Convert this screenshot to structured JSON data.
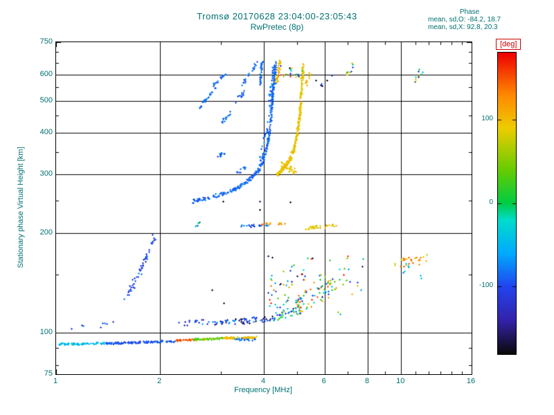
{
  "window": {
    "title": "Tromsø 20170628 23:04:00-23:05:43",
    "subtitle": "RwPretec (8p)"
  },
  "stats": {
    "header": "Phase",
    "line1": "mean, sd,O: -84.2, 18.7",
    "line2": "mean, sd,X:  92.8, 20.3"
  },
  "colorbar": {
    "label": "[deg]",
    "ticks": [
      100,
      0,
      -100
    ],
    "min": -180,
    "max": 180
  },
  "chart_data": {
    "type": "scatter",
    "title": "Tromsø 20170628 23:04:00-23:05:43",
    "subtitle": "RwPretec (8p)",
    "xlabel": "Frequency [MHz]",
    "ylabel": "Stationary phase Virtual Height [km]",
    "xscale": "log",
    "yscale": "log",
    "xlim": [
      1,
      16
    ],
    "ylim": [
      75,
      750
    ],
    "xticks": [
      1,
      2,
      4,
      6,
      8,
      10,
      16
    ],
    "yticks": [
      75,
      100,
      200,
      300,
      400,
      500,
      600,
      750
    ],
    "xminor": [
      3,
      5,
      7,
      9,
      11,
      12,
      13,
      14,
      15
    ],
    "yminor": [
      80,
      90,
      150,
      250,
      350,
      450,
      550,
      650,
      700
    ],
    "grid_x": [
      2,
      4,
      6,
      8,
      10
    ],
    "grid_y": [
      100,
      200,
      300,
      400,
      500,
      600
    ],
    "grid": true,
    "legend": "colorbar-right",
    "color_value": "phase [deg]",
    "colormap": [
      [
        -180,
        "#0a0a0a"
      ],
      [
        -140,
        "#3322aa"
      ],
      [
        -100,
        "#2244ee"
      ],
      [
        -60,
        "#00aaff"
      ],
      [
        -20,
        "#00ddcc"
      ],
      [
        0,
        "#00cc44"
      ],
      [
        40,
        "#66cc00"
      ],
      [
        90,
        "#eecc00"
      ],
      [
        130,
        "#ff8800"
      ],
      [
        180,
        "#ee0000"
      ]
    ],
    "traces": [
      {
        "name": "e-trace-cyan",
        "pts": [
          [
            1.02,
            92.5
          ],
          [
            1.38,
            93
          ]
        ],
        "n": 70,
        "fj": 0.006,
        "hj": 0.006,
        "ph": -48,
        "pj": 14
      },
      {
        "name": "e-trace-blue",
        "pts": [
          [
            1.38,
            93
          ],
          [
            2.2,
            94.5
          ]
        ],
        "n": 130,
        "fj": 0.005,
        "hj": 0.006,
        "ph": -95,
        "pj": 12
      },
      {
        "name": "e-trace-orange",
        "pts": [
          [
            2.22,
            95
          ],
          [
            2.5,
            95.5
          ]
        ],
        "n": 26,
        "fj": 0.006,
        "hj": 0.006,
        "ph": 145,
        "pj": 25
      },
      {
        "name": "e-trace-green",
        "pts": [
          [
            2.5,
            95.5
          ],
          [
            3.05,
            96.5
          ]
        ],
        "n": 55,
        "fj": 0.006,
        "hj": 0.006,
        "ph": 45,
        "pj": 35
      },
      {
        "name": "e-trace-yellow",
        "pts": [
          [
            3.05,
            96.5
          ],
          [
            3.8,
            97
          ]
        ],
        "n": 75,
        "fj": 0.006,
        "hj": 0.006,
        "ph": 95,
        "pj": 22
      },
      {
        "name": "e-trace-blue-mix",
        "pts": [
          [
            3.3,
            95.5
          ],
          [
            3.8,
            95.5
          ]
        ],
        "n": 18,
        "fj": 0.008,
        "hj": 0.008,
        "ph": -85,
        "pj": 20
      },
      {
        "name": "e2-band-1",
        "pts": [
          [
            2.25,
            107
          ],
          [
            3.3,
            108
          ]
        ],
        "n": 40,
        "fj": 0.01,
        "hj": 0.02,
        "ph": -100,
        "pj": 45
      },
      {
        "name": "e2-band-2",
        "pts": [
          [
            3.3,
            108
          ],
          [
            4.3,
            111
          ]
        ],
        "n": 45,
        "fj": 0.01,
        "hj": 0.02,
        "ph": -120,
        "pj": 55
      },
      {
        "name": "e2-band-3",
        "pts": [
          [
            4.3,
            112
          ],
          [
            5.1,
            118
          ]
        ],
        "n": 40,
        "fj": 0.012,
        "hj": 0.03,
        "ph": -40,
        "pj": 110
      },
      {
        "name": "e2-rise",
        "pts": [
          [
            4.9,
            120
          ],
          [
            6.3,
            138
          ]
        ],
        "n": 55,
        "fj": 0.015,
        "hj": 0.06,
        "ph": 30,
        "pj": 140
      },
      {
        "name": "mid-cloud",
        "pts": [
          [
            4.1,
            135
          ],
          [
            6.4,
            155
          ]
        ],
        "n": 60,
        "fj": 0.02,
        "hj": 0.16,
        "ph": 0,
        "pj": 170
      },
      {
        "name": "mid-cloud-right",
        "pts": [
          [
            6.4,
            130
          ],
          [
            7.8,
            170
          ]
        ],
        "n": 20,
        "fj": 0.02,
        "hj": 0.18,
        "ph": 10,
        "pj": 160
      },
      {
        "name": "lower-diagonal",
        "pts": [
          [
            1.58,
            128
          ],
          [
            1.72,
            146
          ],
          [
            1.82,
            168
          ],
          [
            1.92,
            195
          ]
        ],
        "n": 50,
        "fj": 0.012,
        "hj": 0.03,
        "ph": -100,
        "pj": 25
      },
      {
        "name": "f-trace-o",
        "pts": [
          [
            2.45,
            248
          ],
          [
            2.75,
            255
          ],
          [
            3.05,
            263
          ],
          [
            3.35,
            274
          ],
          [
            3.6,
            288
          ],
          [
            3.85,
            308
          ],
          [
            4.0,
            335
          ],
          [
            4.1,
            372
          ],
          [
            4.17,
            425
          ],
          [
            4.22,
            495
          ],
          [
            4.27,
            575
          ],
          [
            4.32,
            655
          ]
        ],
        "n": 300,
        "fj": 0.005,
        "hj": 0.012,
        "ph": -85,
        "pj": 13
      },
      {
        "name": "f-trace-o-spread",
        "pts": [
          [
            3.9,
            320
          ],
          [
            4.05,
            400
          ],
          [
            4.15,
            480
          ],
          [
            4.25,
            570
          ],
          [
            4.3,
            650
          ]
        ],
        "n": 80,
        "fj": 0.015,
        "hj": 0.035,
        "ph": -85,
        "pj": 20
      },
      {
        "name": "o-column",
        "pts": [
          [
            3.88,
            560
          ],
          [
            3.95,
            660
          ]
        ],
        "n": 40,
        "fj": 0.008,
        "hj": 0.02,
        "ph": -85,
        "pj": 16
      },
      {
        "name": "oblique-1",
        "pts": [
          [
            2.6,
            478
          ],
          [
            2.75,
            512
          ],
          [
            2.9,
            552
          ]
        ],
        "n": 28,
        "fj": 0.006,
        "hj": 0.012,
        "ph": -85,
        "pj": 14
      },
      {
        "name": "oblique-2",
        "pts": [
          [
            2.85,
            555
          ],
          [
            3.0,
            585
          ],
          [
            3.12,
            612
          ]
        ],
        "n": 20,
        "fj": 0.006,
        "hj": 0.012,
        "ph": -85,
        "pj": 14
      },
      {
        "name": "oblique-3",
        "pts": [
          [
            3.0,
            428
          ],
          [
            3.2,
            462
          ]
        ],
        "n": 14,
        "fj": 0.008,
        "hj": 0.015,
        "ph": -85,
        "pj": 14
      },
      {
        "name": "oblique-4",
        "pts": [
          [
            3.3,
            492
          ],
          [
            3.5,
            535
          ]
        ],
        "n": 12,
        "fj": 0.008,
        "hj": 0.015,
        "ph": -85,
        "pj": 14
      },
      {
        "name": "oblique-5",
        "pts": [
          [
            3.45,
            556
          ],
          [
            3.6,
            592
          ],
          [
            3.72,
            628
          ],
          [
            3.8,
            650
          ]
        ],
        "n": 22,
        "fj": 0.007,
        "hj": 0.012,
        "ph": -85,
        "pj": 14
      },
      {
        "name": "blue-clump-340",
        "pts": [
          [
            2.88,
            338
          ],
          [
            3.06,
            348
          ]
        ],
        "n": 10,
        "fj": 0.008,
        "hj": 0.01,
        "ph": -85,
        "pj": 14
      },
      {
        "name": "blue-clump-310",
        "pts": [
          [
            3.32,
            303
          ],
          [
            3.52,
            315
          ]
        ],
        "n": 10,
        "fj": 0.008,
        "hj": 0.01,
        "ph": -85,
        "pj": 14
      },
      {
        "name": "f-trace-x",
        "pts": [
          [
            4.35,
            298
          ],
          [
            4.55,
            313
          ],
          [
            4.75,
            333
          ],
          [
            4.9,
            362
          ],
          [
            5.0,
            402
          ],
          [
            5.08,
            458
          ],
          [
            5.14,
            535
          ],
          [
            5.2,
            645
          ]
        ],
        "n": 260,
        "fj": 0.006,
        "hj": 0.012,
        "ph": 92,
        "pj": 13
      },
      {
        "name": "x-column",
        "pts": [
          [
            4.35,
            575
          ],
          [
            4.45,
            655
          ]
        ],
        "n": 40,
        "fj": 0.008,
        "hj": 0.02,
        "ph": 95,
        "pj": 15
      },
      {
        "name": "x-shelf",
        "pts": [
          [
            4.5,
            322
          ],
          [
            4.9,
            306
          ]
        ],
        "n": 30,
        "fj": 0.01,
        "hj": 0.02,
        "ph": 95,
        "pj": 18
      },
      {
        "name": "x-sparse-top",
        "pts": [
          [
            5.28,
            555
          ],
          [
            5.45,
            615
          ]
        ],
        "n": 12,
        "fj": 0.008,
        "hj": 0.02,
        "ph": 95,
        "pj": 18
      },
      {
        "name": "top-mixed-specks",
        "pts": [
          [
            4.4,
            620
          ],
          [
            5.1,
            600
          ]
        ],
        "n": 18,
        "fj": 0.02,
        "hj": 0.04,
        "ph": 0,
        "pj": 175
      },
      {
        "name": "seg210-blue",
        "pts": [
          [
            3.45,
            210
          ],
          [
            4.25,
            211
          ]
        ],
        "n": 22,
        "fj": 0.01,
        "hj": 0.008,
        "ph": -90,
        "pj": 28
      },
      {
        "name": "seg210-orange",
        "pts": [
          [
            3.85,
            213
          ],
          [
            4.6,
            213
          ]
        ],
        "n": 14,
        "fj": 0.012,
        "hj": 0.008,
        "ph": 125,
        "pj": 30
      },
      {
        "name": "seg210-yellow",
        "pts": [
          [
            5.3,
            207
          ],
          [
            6.6,
            212
          ]
        ],
        "n": 30,
        "fj": 0.012,
        "hj": 0.01,
        "ph": 95,
        "pj": 22
      },
      {
        "name": "spot-2p6-210",
        "pts": [
          [
            2.52,
            209
          ],
          [
            2.64,
            216
          ]
        ],
        "n": 7,
        "fj": 0.006,
        "hj": 0.01,
        "ph": -50,
        "pj": 70
      },
      {
        "name": "spot-7-top",
        "pts": [
          [
            6.95,
            598
          ],
          [
            7.25,
            648
          ]
        ],
        "n": 10,
        "fj": 0.01,
        "hj": 0.02,
        "ph": 20,
        "pj": 130
      },
      {
        "name": "spot-11-top",
        "pts": [
          [
            10.8,
            572
          ],
          [
            11.5,
            618
          ]
        ],
        "n": 11,
        "fj": 0.015,
        "hj": 0.02,
        "ph": 0,
        "pj": 160
      },
      {
        "name": "spot-11-160",
        "pts": [
          [
            9.6,
            162
          ],
          [
            12.2,
            168
          ]
        ],
        "n": 26,
        "fj": 0.02,
        "hj": 0.03,
        "ph": 110,
        "pj": 45
      },
      {
        "name": "spot-11-150-cyan",
        "pts": [
          [
            10.0,
            158
          ],
          [
            11.6,
            150
          ]
        ],
        "n": 7,
        "fj": 0.02,
        "hj": 0.05,
        "ph": -55,
        "pj": 40
      },
      {
        "name": "dots-low-left",
        "pts": [
          [
            1.1,
            104
          ],
          [
            1.5,
            106
          ]
        ],
        "n": 8,
        "fj": 0.02,
        "hj": 0.02,
        "ph": -100,
        "pj": 25
      },
      {
        "name": "dark-specks",
        "pts": [
          [
            2.2,
            170
          ],
          [
            7.5,
            230
          ]
        ],
        "n": 8,
        "fj": 0.28,
        "hj": 0.35,
        "ph": -170,
        "pj": 10
      },
      {
        "name": "specks-6-570",
        "pts": [
          [
            5.7,
            555
          ],
          [
            6.3,
            595
          ]
        ],
        "n": 6,
        "fj": 0.02,
        "hj": 0.03,
        "ph": -140,
        "pj": 60
      }
    ]
  }
}
